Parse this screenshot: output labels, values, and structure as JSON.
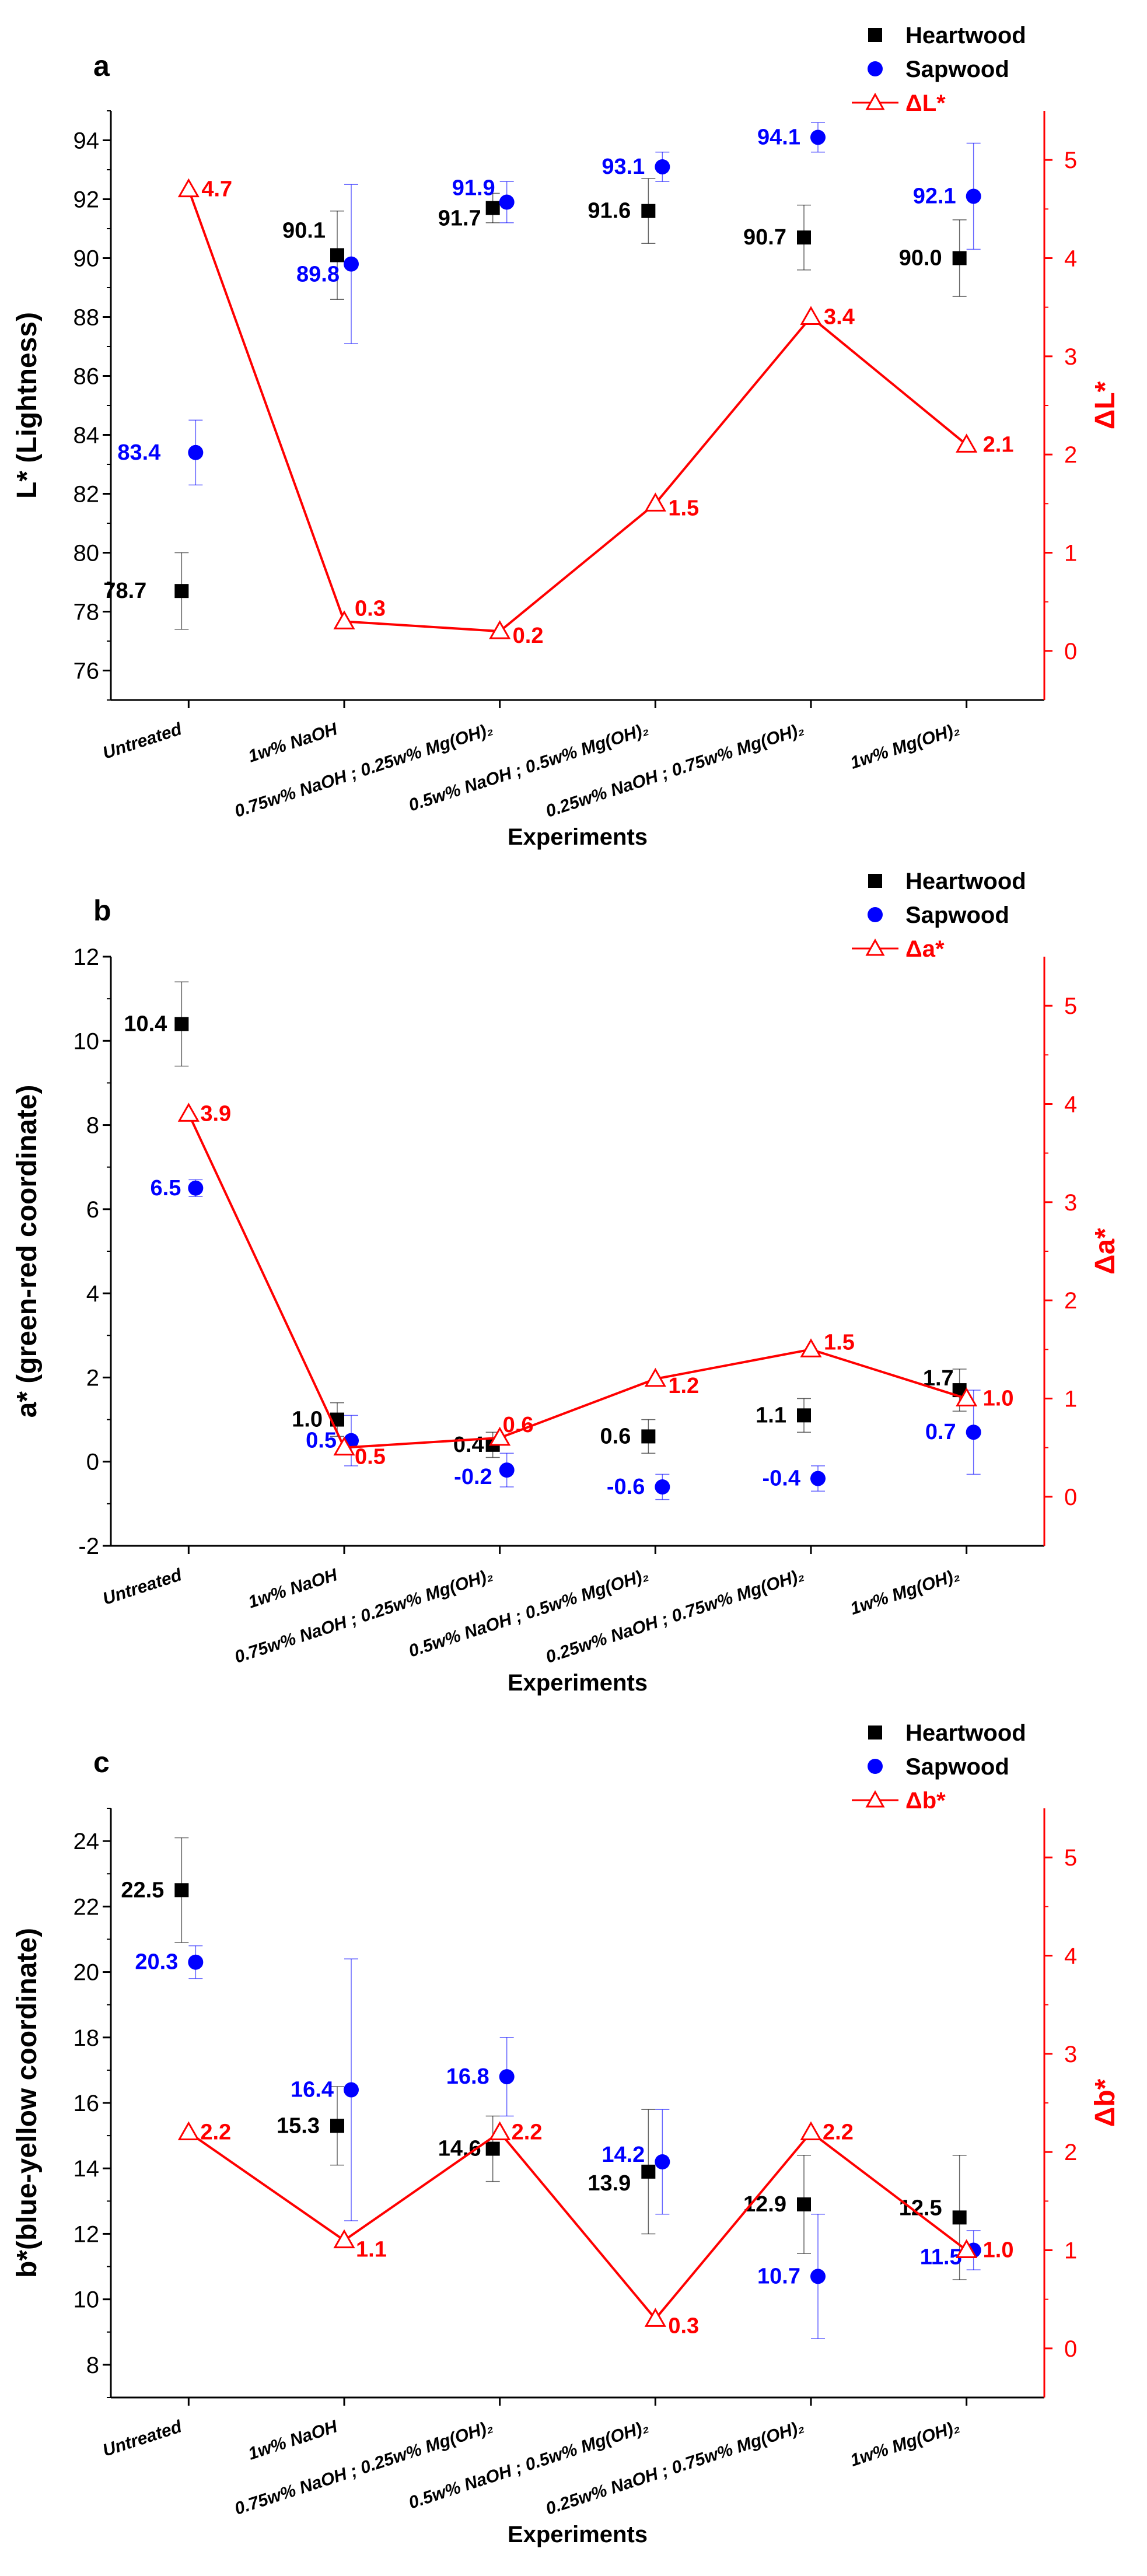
{
  "chart_data": [
    {
      "type": "scatter",
      "panel": "a",
      "categories": [
        "Untreated",
        "1w% NaOH",
        "0.75w% NaOH ; 0.25w% Mg(OH)₂",
        "0.5w% NaOH ; 0.5w% Mg(OH)₂",
        "0.25w% NaOH ; 0.75w% Mg(OH)₂",
        "1w% Mg(OH)₂"
      ],
      "xlabel": "Experiments",
      "ylabel": "L* (Lightness)",
      "ylabel_right": "ΔL*",
      "ylim": [
        75,
        95
      ],
      "yticks": [
        76,
        78,
        80,
        82,
        84,
        86,
        88,
        90,
        92,
        94
      ],
      "ylim_right": [
        -0.5,
        5.5
      ],
      "yticks_right": [
        0,
        1,
        2,
        3,
        4,
        5
      ],
      "legend_position": "top-right",
      "series": [
        {
          "name": "Heartwood",
          "axis": "left",
          "marker": "square",
          "color": "#000000",
          "values": [
            78.7,
            90.1,
            91.7,
            91.6,
            90.7,
            90.0
          ],
          "errors": [
            1.3,
            1.5,
            0.5,
            1.1,
            1.1,
            1.3
          ],
          "labels": [
            "78.7",
            "90.1",
            "91.7",
            "91.6",
            "90.7",
            "90.0"
          ]
        },
        {
          "name": "Sapwood",
          "axis": "left",
          "marker": "circle",
          "color": "#0000ff",
          "values": [
            83.4,
            89.8,
            91.9,
            93.1,
            94.1,
            92.1
          ],
          "errors": [
            1.1,
            2.7,
            0.7,
            0.5,
            0.5,
            1.8
          ],
          "labels": [
            "83.4",
            "89.8",
            "91.9",
            "93.1",
            "94.1",
            "92.1"
          ]
        },
        {
          "name": "ΔL*",
          "axis": "right",
          "marker": "triangle-open",
          "color": "#ff0000",
          "values": [
            4.7,
            0.3,
            0.2,
            1.5,
            3.4,
            2.1
          ],
          "labels": [
            "4.7",
            "0.3",
            "0.2",
            "1.5",
            "3.4",
            "2.1"
          ]
        }
      ]
    },
    {
      "type": "scatter",
      "panel": "b",
      "categories": [
        "Untreated",
        "1w% NaOH",
        "0.75w% NaOH ; 0.25w% Mg(OH)₂",
        "0.5w% NaOH ; 0.5w% Mg(OH)₂",
        "0.25w% NaOH ; 0.75w% Mg(OH)₂",
        "1w% Mg(OH)₂"
      ],
      "xlabel": "Experiments",
      "ylabel": "a* (green-red coordinate)",
      "ylabel_right": "Δa*",
      "ylim": [
        -2,
        12
      ],
      "yticks": [
        -2,
        0,
        2,
        4,
        6,
        8,
        10,
        12
      ],
      "ylim_right": [
        -0.5,
        5.5
      ],
      "yticks_right": [
        0,
        1,
        2,
        3,
        4,
        5
      ],
      "legend_position": "top-right",
      "series": [
        {
          "name": "Heartwood",
          "axis": "left",
          "marker": "square",
          "color": "#000000",
          "values": [
            10.4,
            1.0,
            0.4,
            0.6,
            1.1,
            1.7
          ],
          "errors": [
            1.0,
            0.4,
            0.3,
            0.4,
            0.4,
            0.5
          ],
          "labels": [
            "10.4",
            "1.0",
            "0.4",
            "0.6",
            "1.1",
            "1.7"
          ]
        },
        {
          "name": "Sapwood",
          "axis": "left",
          "marker": "circle",
          "color": "#0000ff",
          "values": [
            6.5,
            0.5,
            -0.2,
            -0.6,
            -0.4,
            0.7
          ],
          "errors": [
            0.2,
            0.6,
            0.4,
            0.3,
            0.3,
            1.0
          ],
          "labels": [
            "6.5",
            "0.5",
            "-0.2",
            "-0.6",
            "-0.4",
            "0.7"
          ]
        },
        {
          "name": "Δa*",
          "axis": "right",
          "marker": "triangle-open",
          "color": "#ff0000",
          "values": [
            3.9,
            0.5,
            0.6,
            1.2,
            1.5,
            1.0
          ],
          "labels": [
            "3.9",
            "0.5",
            "0.6",
            "1.2",
            "1.5",
            "1.0"
          ]
        }
      ]
    },
    {
      "type": "scatter",
      "panel": "c",
      "categories": [
        "Untreated",
        "1w% NaOH",
        "0.75w% NaOH ; 0.25w% Mg(OH)₂",
        "0.5w% NaOH ; 0.5w% Mg(OH)₂",
        "0.25w% NaOH ; 0.75w% Mg(OH)₂",
        "1w% Mg(OH)₂"
      ],
      "xlabel": "Experiments",
      "ylabel": "b*(blue-yellow coordinate)",
      "ylabel_right": "Δb*",
      "ylim": [
        7,
        25
      ],
      "yticks": [
        8,
        10,
        12,
        14,
        16,
        18,
        20,
        22,
        24
      ],
      "ylim_right": [
        -0.5,
        5.5
      ],
      "yticks_right": [
        0,
        1,
        2,
        3,
        4,
        5
      ],
      "legend_position": "top-right",
      "series": [
        {
          "name": "Heartwood",
          "axis": "left",
          "marker": "square",
          "color": "#000000",
          "values": [
            22.5,
            15.3,
            14.6,
            13.9,
            12.9,
            12.5
          ],
          "errors": [
            1.6,
            1.2,
            1.0,
            1.9,
            1.5,
            1.9
          ],
          "labels": [
            "22.5",
            "15.3",
            "14.6",
            "13.9",
            "12.9",
            "12.5"
          ]
        },
        {
          "name": "Sapwood",
          "axis": "left",
          "marker": "circle",
          "color": "#0000ff",
          "values": [
            20.3,
            16.4,
            16.8,
            14.2,
            10.7,
            11.5
          ],
          "errors": [
            0.5,
            4.0,
            1.2,
            1.6,
            1.9,
            0.6
          ],
          "labels": [
            "20.3",
            "16.4",
            "16.8",
            "14.2",
            "10.7",
            "11.5"
          ]
        },
        {
          "name": "Δb*",
          "axis": "right",
          "marker": "triangle-open",
          "color": "#ff0000",
          "values": [
            2.2,
            1.1,
            2.2,
            0.3,
            2.2,
            1.0
          ],
          "labels": [
            "2.2",
            "1.1",
            "2.2",
            "0.3",
            "2.2",
            "1.0"
          ]
        }
      ]
    }
  ]
}
